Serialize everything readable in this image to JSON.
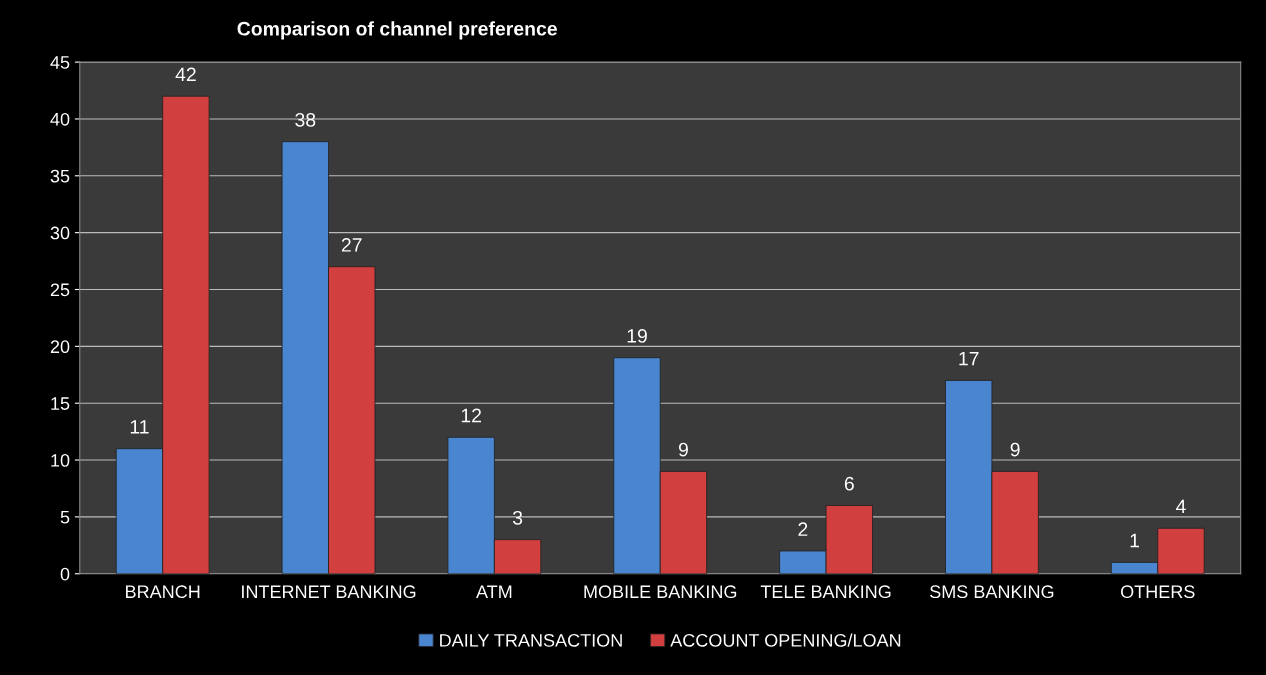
{
  "chart_data": {
    "type": "bar",
    "title": "Comparison of channel preference",
    "categories": [
      "BRANCH",
      "INTERNET BANKING",
      "ATM",
      "MOBILE BANKING",
      "TELE BANKING",
      "SMS BANKING",
      "OTHERS"
    ],
    "series": [
      {
        "name": "DAILY TRANSACTION",
        "color": "#4a86d0",
        "values": [
          11,
          38,
          12,
          19,
          2,
          17,
          1
        ]
      },
      {
        "name": "ACCOUNT OPENING/LOAN",
        "color": "#d23f3f",
        "values": [
          42,
          27,
          3,
          9,
          6,
          9,
          4
        ]
      }
    ],
    "ylim": [
      0,
      45
    ],
    "yticks": [
      0,
      5,
      10,
      15,
      20,
      25,
      30,
      35,
      40,
      45
    ],
    "grid": "y",
    "legend": "bottom",
    "data_labels": true
  }
}
